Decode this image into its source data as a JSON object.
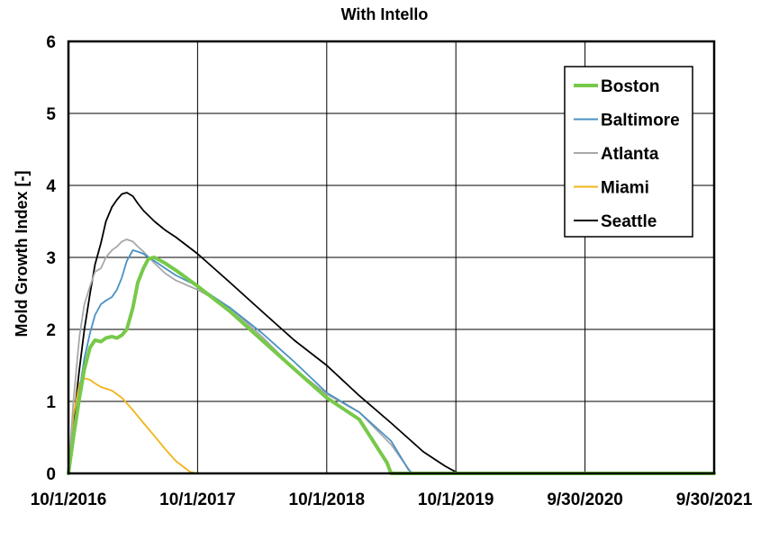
{
  "chart_data": {
    "type": "line",
    "title": "With Intello",
    "xlabel": "",
    "ylabel": "Mold Growth Index [-]",
    "x_ticks": [
      "10/1/2016",
      "10/1/2017",
      "10/1/2018",
      "10/1/2019",
      "9/30/2020",
      "9/30/2021"
    ],
    "xlim": [
      "2016-10-01",
      "2021-09-30"
    ],
    "ylim": [
      0,
      6
    ],
    "y_ticks": [
      0,
      1,
      2,
      3,
      4,
      5,
      6
    ],
    "grid": true,
    "legend_position": "top-right",
    "series": [
      {
        "name": "Boston",
        "color": "#77c94a",
        "x": [
          "2016-10-01",
          "2016-10-15",
          "2016-11-01",
          "2016-11-15",
          "2016-12-01",
          "2016-12-15",
          "2017-01-01",
          "2017-01-15",
          "2017-02-01",
          "2017-02-15",
          "2017-03-01",
          "2017-03-15",
          "2017-04-01",
          "2017-04-15",
          "2017-05-01",
          "2017-05-15",
          "2017-06-01",
          "2017-07-01",
          "2017-08-01",
          "2017-10-01",
          "2018-01-01",
          "2018-04-01",
          "2018-07-01",
          "2018-10-01",
          "2019-01-01",
          "2019-03-20",
          "2019-04-01",
          "2021-09-30"
        ],
        "y": [
          0,
          0.5,
          1.05,
          1.45,
          1.75,
          1.85,
          1.83,
          1.88,
          1.9,
          1.88,
          1.92,
          2.0,
          2.3,
          2.65,
          2.85,
          2.98,
          3.0,
          2.92,
          2.82,
          2.6,
          2.25,
          1.85,
          1.45,
          1.05,
          0.75,
          0.15,
          0.0,
          0.0
        ]
      },
      {
        "name": "Baltimore",
        "color": "#4a90c4",
        "x": [
          "2016-10-01",
          "2016-10-15",
          "2016-11-01",
          "2016-11-15",
          "2016-12-01",
          "2016-12-15",
          "2017-01-01",
          "2017-01-15",
          "2017-02-01",
          "2017-02-15",
          "2017-03-01",
          "2017-03-15",
          "2017-04-01",
          "2017-04-15",
          "2017-05-01",
          "2017-05-15",
          "2017-06-01",
          "2017-07-01",
          "2017-08-01",
          "2017-10-01",
          "2018-01-01",
          "2018-04-01",
          "2018-07-01",
          "2018-10-01",
          "2019-01-01",
          "2019-04-01",
          "2019-05-20",
          "2019-06-01",
          "2021-09-30"
        ],
        "y": [
          0,
          0.6,
          1.15,
          1.6,
          1.95,
          2.2,
          2.35,
          2.4,
          2.45,
          2.55,
          2.72,
          2.95,
          3.1,
          3.08,
          3.05,
          3.0,
          2.95,
          2.85,
          2.75,
          2.6,
          2.3,
          1.95,
          1.55,
          1.12,
          0.85,
          0.45,
          0.05,
          0.0,
          0.0
        ]
      },
      {
        "name": "Atlanta",
        "color": "#a8a8a8",
        "x": [
          "2016-10-01",
          "2016-10-15",
          "2016-11-01",
          "2016-11-15",
          "2016-12-01",
          "2016-12-15",
          "2017-01-01",
          "2017-01-15",
          "2017-02-01",
          "2017-02-15",
          "2017-03-01",
          "2017-03-15",
          "2017-04-01",
          "2017-04-15",
          "2017-05-01",
          "2017-06-01",
          "2017-07-01",
          "2017-08-01",
          "2017-10-01",
          "2018-01-01",
          "2018-04-01",
          "2018-07-01",
          "2018-10-01",
          "2019-01-01",
          "2019-04-01",
          "2019-05-25",
          "2019-06-01",
          "2021-09-30"
        ],
        "y": [
          0,
          1.0,
          1.9,
          2.35,
          2.6,
          2.8,
          2.85,
          3.0,
          3.1,
          3.15,
          3.22,
          3.25,
          3.22,
          3.15,
          3.08,
          2.92,
          2.78,
          2.68,
          2.55,
          2.3,
          1.9,
          1.45,
          1.1,
          0.85,
          0.4,
          0.03,
          0.0,
          0.0
        ]
      },
      {
        "name": "Miami",
        "color": "#f2b418",
        "x": [
          "2016-10-01",
          "2016-10-15",
          "2016-11-01",
          "2016-11-15",
          "2016-12-01",
          "2016-12-15",
          "2017-01-01",
          "2017-02-01",
          "2017-03-01",
          "2017-04-01",
          "2017-05-01",
          "2017-06-01",
          "2017-07-01",
          "2017-08-01",
          "2017-09-10",
          "2017-10-01",
          "2021-09-30"
        ],
        "y": [
          0,
          0.8,
          1.25,
          1.32,
          1.3,
          1.25,
          1.2,
          1.15,
          1.05,
          0.88,
          0.7,
          0.52,
          0.34,
          0.17,
          0.02,
          0.0,
          0.0
        ]
      },
      {
        "name": "Seattle",
        "color": "#000000",
        "x": [
          "2016-10-01",
          "2016-10-15",
          "2016-11-01",
          "2016-11-15",
          "2016-12-01",
          "2016-12-15",
          "2017-01-01",
          "2017-01-15",
          "2017-02-01",
          "2017-02-15",
          "2017-03-01",
          "2017-03-15",
          "2017-04-01",
          "2017-04-15",
          "2017-05-01",
          "2017-06-01",
          "2017-07-01",
          "2017-08-01",
          "2017-10-01",
          "2018-01-01",
          "2018-04-01",
          "2018-07-01",
          "2018-10-01",
          "2019-01-01",
          "2019-04-01",
          "2019-07-01",
          "2019-09-01",
          "2019-10-01",
          "2019-10-20",
          "2021-09-30"
        ],
        "y": [
          0,
          0.7,
          1.45,
          2.0,
          2.5,
          2.9,
          3.2,
          3.5,
          3.7,
          3.8,
          3.88,
          3.9,
          3.85,
          3.75,
          3.65,
          3.5,
          3.38,
          3.28,
          3.05,
          2.65,
          2.25,
          1.85,
          1.5,
          1.08,
          0.7,
          0.3,
          0.1,
          0.02,
          0.0,
          0.0
        ]
      }
    ]
  }
}
